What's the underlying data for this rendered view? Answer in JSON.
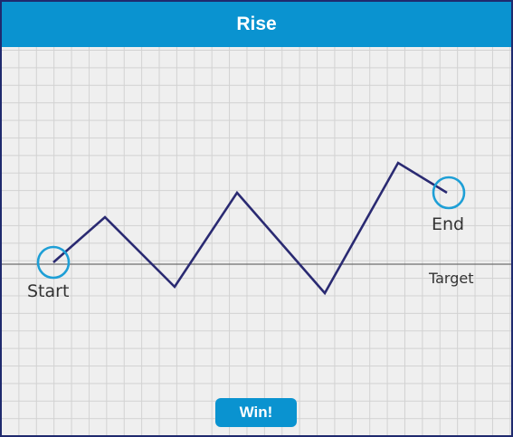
{
  "title": "Rise",
  "labels": {
    "start": "Start",
    "end": "End",
    "target": "Target"
  },
  "button": {
    "label": "Win!"
  },
  "colors": {
    "header": "#0a93d0",
    "path": "#2a2a72",
    "ring": "#1e9fd6",
    "target_line": "#6e6e6e",
    "grid_background": "#efefef",
    "grid_lines": "#d2d2d2"
  }
}
